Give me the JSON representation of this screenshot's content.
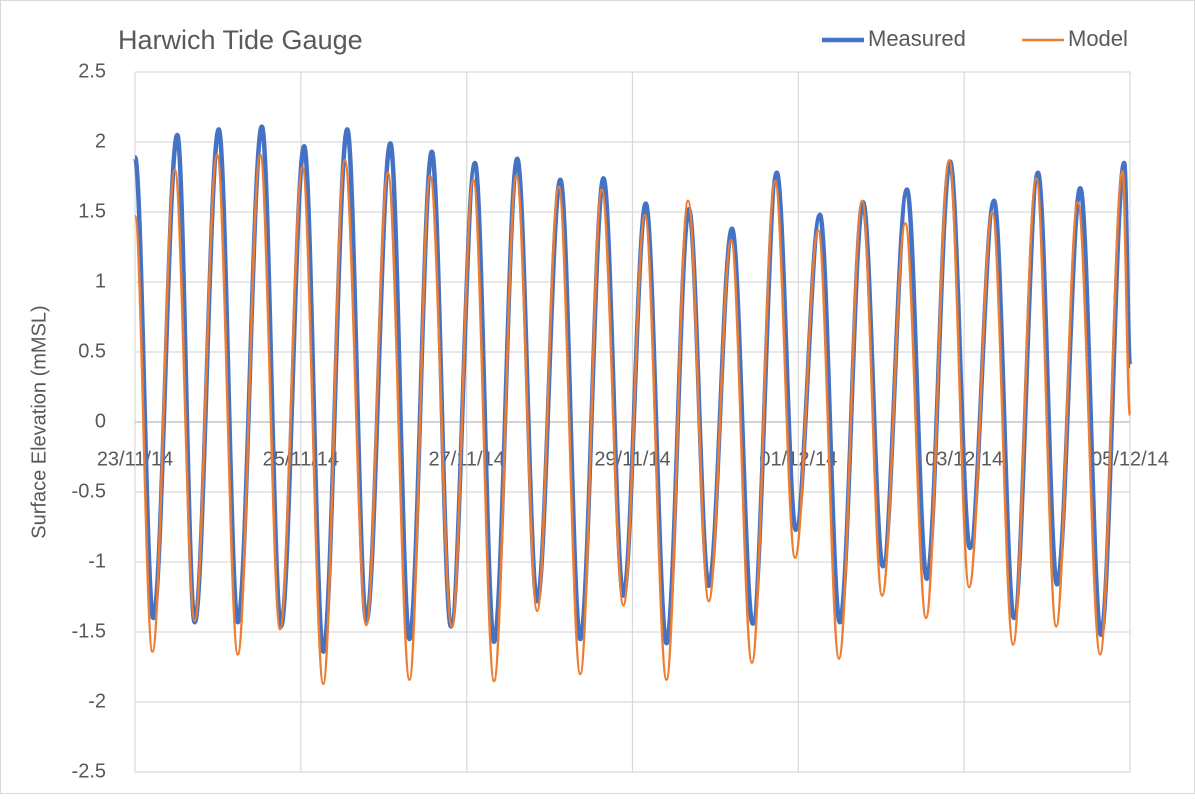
{
  "chart_data": {
    "type": "line",
    "title": "Harwich Tide Gauge",
    "y_label": "Surface Elevation (mMSL)",
    "xlim": [
      0,
      12
    ],
    "xticks": [
      {
        "value": 0,
        "label": "23/11/14"
      },
      {
        "value": 2,
        "label": "25/11/14"
      },
      {
        "value": 4,
        "label": "27/11/14"
      },
      {
        "value": 6,
        "label": "29/11/14"
      },
      {
        "value": 8,
        "label": "01/12/14"
      },
      {
        "value": 10,
        "label": "03/12/14"
      },
      {
        "value": 12,
        "label": "05/12/14"
      }
    ],
    "ylim": [
      -2.5,
      2.5
    ],
    "yticks": [
      -2.5,
      -2,
      -1.5,
      -1,
      -0.5,
      0,
      0.5,
      1,
      1.5,
      2,
      2.5
    ],
    "grid": true,
    "legend": "top-right",
    "series": [
      {
        "name": "Measured",
        "color": "#4472c4",
        "x": [
          0,
          0.22,
          0.51,
          0.72,
          1.01,
          1.24,
          1.53,
          1.76,
          2.04,
          2.27,
          2.56,
          2.79,
          3.08,
          3.31,
          3.58,
          3.81,
          4.1,
          4.33,
          4.61,
          4.85,
          5.13,
          5.37,
          5.65,
          5.89,
          6.16,
          6.41,
          6.68,
          6.92,
          7.2,
          7.45,
          7.74,
          7.97,
          8.26,
          8.5,
          8.78,
          9.02,
          9.31,
          9.55,
          9.83,
          10.07,
          10.36,
          10.6,
          10.89,
          11.12,
          11.4,
          11.65,
          11.93,
          12.0
        ],
        "values": [
          1.89,
          -1.4,
          2.05,
          -1.43,
          2.09,
          -1.43,
          2.11,
          -1.46,
          1.97,
          -1.64,
          2.09,
          -1.42,
          1.99,
          -1.55,
          1.93,
          -1.46,
          1.85,
          -1.57,
          1.88,
          -1.28,
          1.73,
          -1.55,
          1.74,
          -1.24,
          1.56,
          -1.58,
          1.52,
          -1.17,
          1.38,
          -1.44,
          1.78,
          -0.77,
          1.48,
          -1.43,
          1.57,
          -1.03,
          1.66,
          -1.12,
          1.86,
          -0.9,
          1.58,
          -1.4,
          1.78,
          -1.16,
          1.67,
          -1.52,
          1.85,
          0.4
        ]
      },
      {
        "name": "Model",
        "color": "#ed7d31",
        "x": [
          0,
          0.21,
          0.48,
          0.72,
          0.99,
          1.24,
          1.51,
          1.75,
          2.02,
          2.27,
          2.53,
          2.79,
          3.05,
          3.31,
          3.56,
          3.82,
          4.08,
          4.33,
          4.6,
          4.85,
          5.11,
          5.37,
          5.63,
          5.89,
          6.15,
          6.41,
          6.67,
          6.92,
          7.19,
          7.44,
          7.72,
          7.96,
          8.24,
          8.49,
          8.77,
          9.01,
          9.29,
          9.54,
          9.82,
          10.06,
          10.34,
          10.59,
          10.87,
          11.11,
          11.37,
          11.64,
          11.91,
          12.0
        ],
        "values": [
          1.47,
          -1.64,
          1.8,
          -1.42,
          1.91,
          -1.66,
          1.91,
          -1.48,
          1.82,
          -1.87,
          1.87,
          -1.45,
          1.78,
          -1.84,
          1.76,
          -1.46,
          1.73,
          -1.85,
          1.76,
          -1.35,
          1.68,
          -1.8,
          1.66,
          -1.31,
          1.48,
          -1.84,
          1.58,
          -1.28,
          1.3,
          -1.72,
          1.72,
          -0.97,
          1.37,
          -1.69,
          1.58,
          -1.24,
          1.42,
          -1.4,
          1.87,
          -1.18,
          1.5,
          -1.59,
          1.74,
          -1.46,
          1.57,
          -1.66,
          1.79,
          0.05
        ]
      }
    ]
  }
}
